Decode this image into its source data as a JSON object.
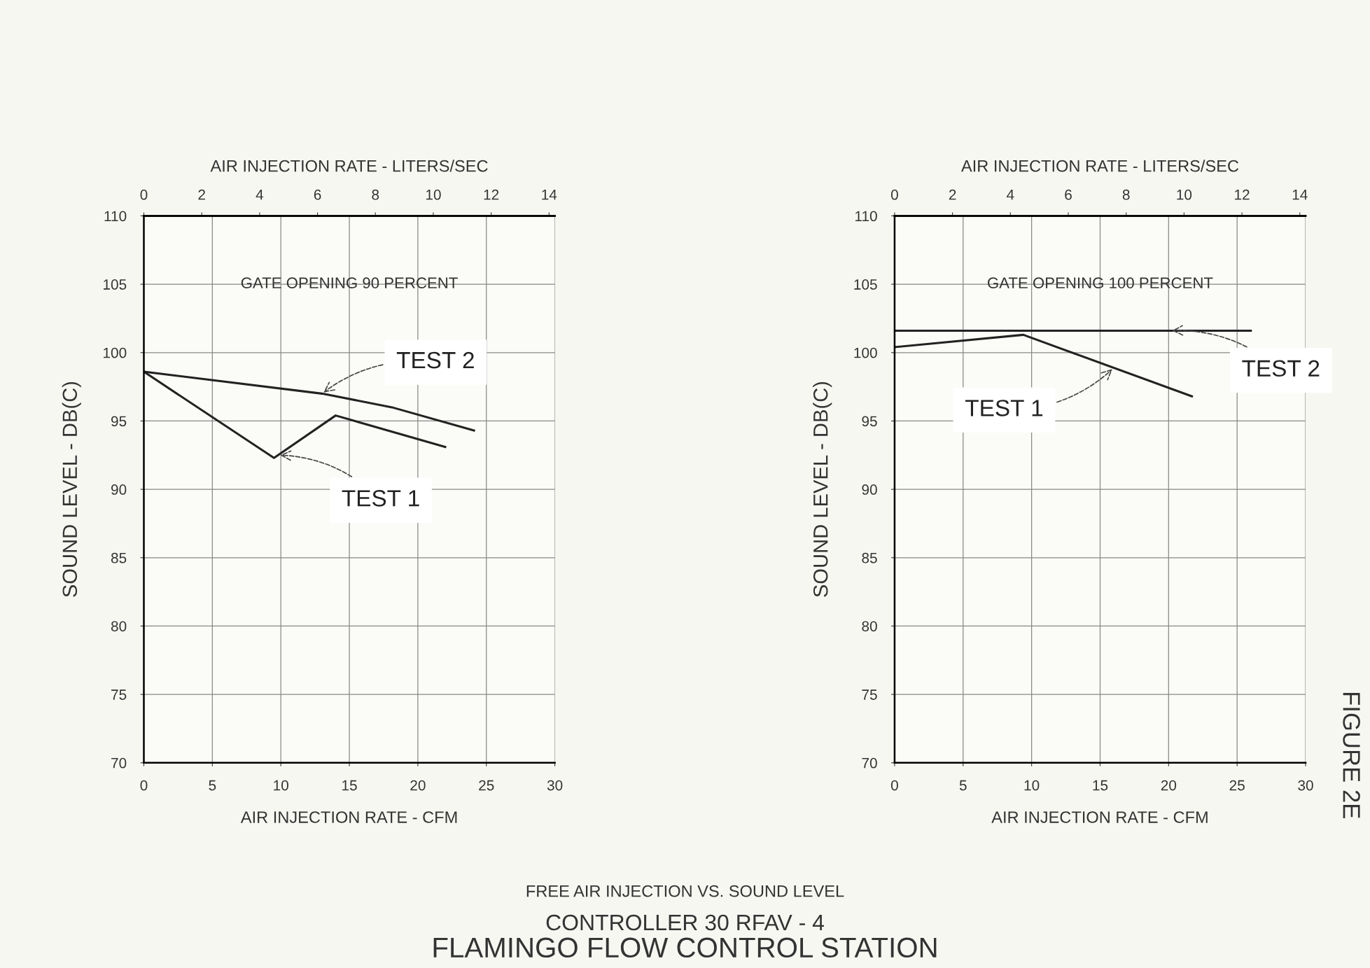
{
  "chart_data": [
    {
      "type": "line",
      "title": "FREE AIR INJECTION VS. SOUND LEVEL",
      "subtitle": "CONTROLLER 30 RFAV - 4",
      "xlabel": "AIR INJECTION RATE - CFM",
      "x2label": "AIR INJECTION RATE - LITERS/SEC",
      "ylabel": "SOUND LEVEL - DB(C)",
      "annotations": [
        "GATE OPENING 90 PERCENT",
        "FLAMINGO FLOW CONTROL STATION"
      ],
      "series": [
        {
          "name": "TEST 1",
          "color": "#222222",
          "x": [
            0,
            9.5,
            14.0,
            22.0
          ],
          "values": [
            98.6,
            92.3,
            95.4,
            93.1
          ]
        },
        {
          "name": "TEST 2",
          "color": "#222222",
          "x": [
            0,
            13.0,
            18.1,
            24.1
          ],
          "values": [
            98.6,
            97.0,
            96.0,
            94.3
          ]
        }
      ],
      "xlim": [
        0,
        30
      ],
      "xticks": [
        0,
        5,
        10,
        15,
        20,
        25,
        30
      ],
      "x2lim": [
        0,
        14.2
      ],
      "x2ticks": [
        0,
        2,
        4,
        6,
        8,
        10,
        12,
        14
      ],
      "ylim": [
        70,
        110
      ],
      "yticks": [
        70,
        75,
        80,
        85,
        90,
        95,
        100,
        105,
        110
      ],
      "grid": true,
      "legend": false,
      "marker": "none",
      "line_style": "solid"
    },
    {
      "type": "line",
      "xlabel": "AIR INJECTION RATE - CFM",
      "x2label": "AIR INJECTION RATE - LITERS/SEC",
      "ylabel": "SOUND LEVEL - DB(C)",
      "annotations": [
        "GATE OPENING 100 PERCENT",
        "FIGURE 2E"
      ],
      "series": [
        {
          "name": "TEST 1",
          "color": "#222222",
          "x": [
            0,
            9.4,
            21.7
          ],
          "values": [
            100.4,
            101.3,
            96.8
          ]
        },
        {
          "name": "TEST 2",
          "color": "#222222",
          "x": [
            0,
            26.0
          ],
          "values": [
            101.6,
            101.6
          ]
        }
      ],
      "xlim": [
        0,
        30
      ],
      "xticks": [
        0,
        5,
        10,
        15,
        20,
        25,
        30
      ],
      "x2lim": [
        0,
        14.2
      ],
      "x2ticks": [
        0,
        2,
        4,
        6,
        8,
        10,
        12,
        14
      ],
      "ylim": [
        70,
        110
      ],
      "yticks": [
        70,
        75,
        80,
        85,
        90,
        95,
        100,
        105,
        110
      ],
      "grid": true,
      "legend": false,
      "marker": "none",
      "line_style": "solid"
    }
  ]
}
